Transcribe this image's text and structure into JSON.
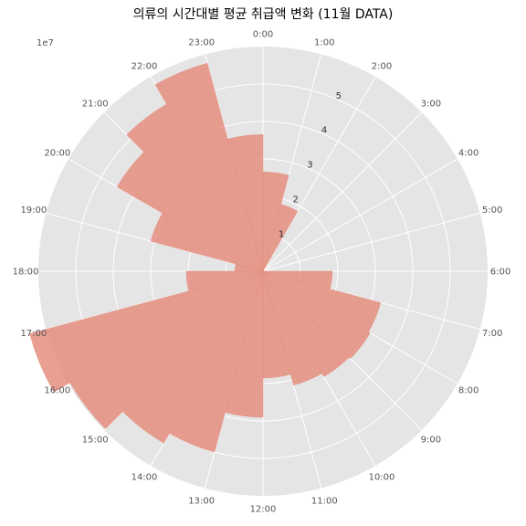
{
  "chart_data": {
    "type": "polar-bar",
    "title": "의류의 시간대별 평균 취급액 변화 (11월 DATA)",
    "scale_label": "1e7",
    "theta_direction": "clockwise",
    "theta_zero": "top",
    "categories": [
      "0:00",
      "1:00",
      "2:00",
      "3:00",
      "4:00",
      "5:00",
      "6:00",
      "7:00",
      "8:00",
      "9:00",
      "10:00",
      "11:00",
      "12:00",
      "13:00",
      "14:00",
      "15:00",
      "16:00",
      "17:00",
      "18:00",
      "19:00",
      "20:00",
      "21:00",
      "22:00",
      "23:00"
    ],
    "r_ticks": [
      1,
      2,
      3,
      4,
      5
    ],
    "rlim": [
      0,
      6
    ],
    "values": [
      2.65,
      1.85,
      0,
      0,
      0,
      0,
      1.85,
      3.25,
      3.3,
      3.25,
      3.15,
      2.85,
      3.9,
      5.0,
      5.3,
      5.95,
      6.45,
      2.05,
      0.75,
      3.1,
      4.5,
      5.15,
      5.75,
      3.65
    ],
    "bar_color": "#e58e7f",
    "background_color": "#e5e5e5",
    "grid": true
  }
}
